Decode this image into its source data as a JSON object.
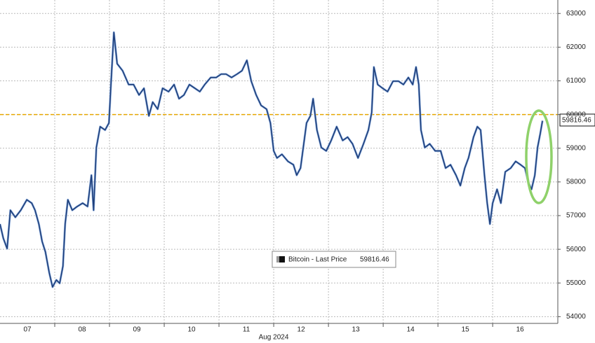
{
  "chart_data": {
    "type": "line",
    "xlabel": "Aug 2024",
    "x": [
      7.0,
      7.06,
      7.13,
      7.19,
      7.28,
      7.38,
      7.49,
      7.58,
      7.64,
      7.71,
      7.77,
      7.83,
      7.9,
      7.96,
      8.03,
      8.09,
      8.15,
      8.19,
      8.24,
      8.32,
      8.41,
      8.51,
      8.6,
      8.67,
      8.71,
      8.76,
      8.83,
      8.92,
      8.99,
      9.03,
      9.08,
      9.14,
      9.24,
      9.35,
      9.44,
      9.54,
      9.63,
      9.72,
      9.79,
      9.88,
      9.97,
      10.08,
      10.18,
      10.27,
      10.36,
      10.46,
      10.56,
      10.65,
      10.74,
      10.85,
      10.95,
      11.04,
      11.13,
      11.23,
      11.33,
      11.42,
      11.51,
      11.59,
      11.68,
      11.77,
      11.87,
      11.94,
      12.0,
      12.06,
      12.15,
      12.26,
      12.36,
      12.42,
      12.49,
      12.54,
      12.6,
      12.67,
      12.72,
      12.79,
      12.87,
      12.96,
      13.05,
      13.15,
      13.26,
      13.35,
      13.44,
      13.54,
      13.64,
      13.73,
      13.79,
      13.83,
      13.9,
      13.99,
      14.08,
      14.18,
      14.28,
      14.37,
      14.46,
      14.54,
      14.6,
      14.65,
      14.69,
      14.76,
      14.85,
      14.95,
      15.05,
      15.14,
      15.23,
      15.33,
      15.41,
      15.49,
      15.56,
      15.65,
      15.72,
      15.78,
      15.85,
      15.9,
      15.95,
      16.0,
      16.08,
      16.15,
      16.23,
      16.33,
      16.42,
      16.51,
      16.59,
      16.65,
      16.71,
      16.77,
      16.82,
      16.87,
      16.91
    ],
    "series": [
      {
        "name": "Bitcoin - Last Price",
        "color": "#1f3f7a",
        "values": [
          56750,
          56330,
          56020,
          57160,
          56950,
          57160,
          57470,
          57370,
          57160,
          56750,
          56230,
          55920,
          55300,
          54880,
          55090,
          54990,
          55500,
          56750,
          57470,
          57160,
          57270,
          57370,
          57270,
          58200,
          57160,
          59020,
          59640,
          59540,
          59750,
          60990,
          62440,
          61510,
          61300,
          60890,
          60890,
          60580,
          60780,
          59960,
          60370,
          60160,
          60780,
          60680,
          60890,
          60470,
          60580,
          60890,
          60780,
          60680,
          60890,
          61100,
          61100,
          61200,
          61200,
          61100,
          61200,
          61300,
          61610,
          60990,
          60580,
          60270,
          60160,
          59750,
          58920,
          58710,
          58820,
          58610,
          58510,
          58200,
          58410,
          59020,
          59750,
          59960,
          60470,
          59540,
          59020,
          58920,
          59230,
          59640,
          59230,
          59330,
          59130,
          58710,
          59130,
          59540,
          60060,
          61410,
          60890,
          60780,
          60680,
          60990,
          60990,
          60890,
          61100,
          60890,
          61410,
          60890,
          59540,
          59020,
          59130,
          58920,
          58920,
          58410,
          58510,
          58200,
          57890,
          58410,
          58720,
          59330,
          59640,
          59540,
          58200,
          57370,
          56750,
          57370,
          57780,
          57370,
          58300,
          58410,
          58610,
          58510,
          58410,
          57990,
          57780,
          58200,
          59020,
          59440,
          59816.46
        ]
      }
    ],
    "xlim": [
      7,
      17.19
    ],
    "xticks": [
      {
        "value": 7.5,
        "label": "07"
      },
      {
        "value": 8.5,
        "label": "08"
      },
      {
        "value": 9.5,
        "label": "09"
      },
      {
        "value": 10.5,
        "label": "10"
      },
      {
        "value": 11.5,
        "label": "11"
      },
      {
        "value": 12.5,
        "label": "12"
      },
      {
        "value": 13.5,
        "label": "13"
      },
      {
        "value": 14.5,
        "label": "14"
      },
      {
        "value": 15.5,
        "label": "15"
      },
      {
        "value": 16.5,
        "label": "16"
      }
    ],
    "xgrid": [
      8,
      9,
      10,
      11,
      12,
      13,
      14,
      15,
      16
    ],
    "ylim": [
      53800,
      63400
    ],
    "yticks": [
      54000,
      55000,
      56000,
      57000,
      58000,
      59000,
      60000,
      61000,
      62000,
      63000
    ],
    "hline": {
      "value": 60000,
      "color": "#e8a800"
    },
    "grid": true
  }
}
